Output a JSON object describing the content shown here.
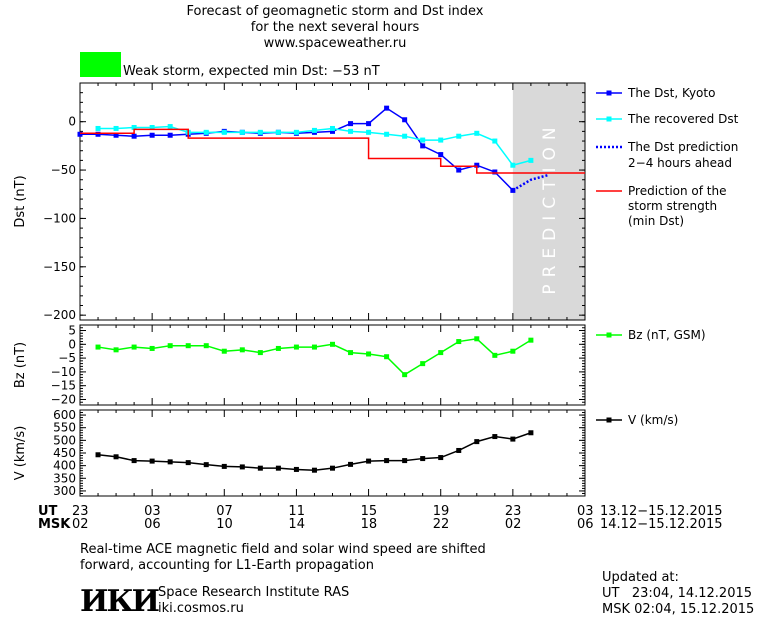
{
  "header": {
    "title_line1": "Forecast of geomagnetic storm and Dst index",
    "title_line2": "for the next several hours",
    "url": "www.spaceweather.ru",
    "status": "Weak storm, expected min Dst: −53 nT",
    "status_color": "#00ff00"
  },
  "prediction_label": "PREDICTION",
  "time_axis": {
    "ut_label": "UT",
    "msk_label": "MSK",
    "ut_ticks": [
      "23",
      "03",
      "07",
      "11",
      "15",
      "19",
      "23",
      "03"
    ],
    "msk_ticks": [
      "02",
      "06",
      "10",
      "14",
      "18",
      "22",
      "02",
      "06"
    ],
    "ut_range": "13.12−15.12.2015",
    "msk_range": "14.12−15.12.2015"
  },
  "chart_data": [
    {
      "type": "line",
      "ylabel": "Dst (nT)",
      "ylim": [
        -205,
        40
      ],
      "yticks": [
        "0",
        "−50",
        "−100",
        "−150",
        "−200"
      ],
      "ytick_values": [
        0,
        -50,
        -100,
        -150,
        -200
      ],
      "x_hours_range": [
        0,
        28
      ],
      "prediction_region_hours": [
        24,
        28
      ],
      "series": [
        {
          "name": "The Dst, Kyoto",
          "color": "#0000ff",
          "marker": "square",
          "x": [
            0,
            1,
            2,
            3,
            4,
            5,
            6,
            7,
            8,
            9,
            10,
            11,
            12,
            13,
            14,
            15,
            16,
            17,
            18,
            19,
            20,
            21,
            22,
            23,
            24
          ],
          "y": [
            -13,
            -13,
            -14,
            -15,
            -14,
            -14,
            -13,
            -12,
            -10,
            -11,
            -12,
            -11,
            -12,
            -11,
            -10,
            -2,
            -2,
            14,
            2,
            -25,
            -34,
            -50,
            -45,
            -52,
            -71
          ]
        },
        {
          "name": "The recovered Dst",
          "color": "#00ffff",
          "marker": "square",
          "x": [
            1,
            2,
            3,
            4,
            5,
            6,
            7,
            8,
            9,
            10,
            11,
            12,
            13,
            14,
            15,
            16,
            17,
            18,
            19,
            20,
            21,
            22,
            23,
            24,
            25
          ],
          "y": [
            -7,
            -7,
            -6,
            -6,
            -5,
            -11,
            -11,
            -11,
            -11,
            -11,
            -11,
            -11,
            -9,
            -7,
            -10,
            -11,
            -13,
            -15,
            -19,
            -19,
            -15,
            -12,
            -20,
            -45,
            -40
          ]
        },
        {
          "name": "The Dst prediction 2−4 hours ahead",
          "color": "#0000ff",
          "dashed": true,
          "x": [
            24,
            25,
            26
          ],
          "y": [
            -71,
            -60,
            -55
          ]
        },
        {
          "name": "Prediction of the storm strength (min Dst)",
          "color": "#ff0000",
          "step": true,
          "x": [
            0,
            2,
            3,
            5,
            6,
            15,
            16,
            19,
            20,
            21,
            22,
            23,
            28
          ],
          "y": [
            -12,
            -12,
            -8,
            -8,
            -17,
            -17,
            -38,
            -38,
            -46,
            -46,
            -53,
            -53,
            -53
          ]
        }
      ],
      "legend": [
        "The Dst, Kyoto",
        "The recovered Dst",
        "The Dst prediction",
        "2−4 hours ahead",
        "Prediction of the",
        "storm strength",
        "(min Dst)"
      ]
    },
    {
      "type": "line",
      "ylabel": "Bz (nT)",
      "ylim": [
        -22,
        7
      ],
      "yticks": [
        "5",
        "0",
        "−5",
        "−10",
        "−15",
        "−20"
      ],
      "ytick_values": [
        5,
        0,
        -5,
        -10,
        -15,
        -20
      ],
      "series": [
        {
          "name": "Bz (nT, GSM)",
          "color": "#00ff00",
          "marker": "square",
          "x": [
            1,
            2,
            3,
            4,
            5,
            6,
            7,
            8,
            9,
            10,
            11,
            12,
            13,
            14,
            15,
            16,
            17,
            18,
            19,
            20,
            21,
            22,
            23,
            24,
            25
          ],
          "y": [
            -1,
            -2,
            -1,
            -1.5,
            -0.5,
            -0.5,
            -0.5,
            -2.5,
            -2,
            -3,
            -1.5,
            -1,
            -1,
            0,
            -3,
            -3.5,
            -4.5,
            -11,
            -7,
            -3,
            1,
            2,
            -4,
            -2.5,
            1.5
          ]
        }
      ]
    },
    {
      "type": "line",
      "ylabel": "V (km/s)",
      "ylim": [
        280,
        620
      ],
      "yticks": [
        "600",
        "550",
        "500",
        "450",
        "400",
        "350",
        "300"
      ],
      "ytick_values": [
        600,
        550,
        500,
        450,
        400,
        350,
        300
      ],
      "series": [
        {
          "name": "V (km/s)",
          "color": "#000000",
          "marker": "square",
          "x": [
            1,
            2,
            3,
            4,
            5,
            6,
            7,
            8,
            9,
            10,
            11,
            12,
            13,
            14,
            15,
            16,
            17,
            18,
            19,
            20,
            21,
            22,
            23,
            24,
            25
          ],
          "y": [
            443,
            435,
            420,
            418,
            415,
            412,
            404,
            397,
            395,
            390,
            390,
            385,
            382,
            390,
            405,
            418,
            420,
            420,
            428,
            432,
            460,
            495,
            515,
            505,
            530
          ]
        }
      ]
    }
  ],
  "footer": {
    "note_line1": "Real-time ACE magnetic field and solar wind speed are shifted",
    "note_line2": "forward, accounting for L1-Earth propagation",
    "institute": "Space Research Institute RAS",
    "site": "iki.cosmos.ru",
    "logo_text": "ИКИ",
    "updated_label": "Updated at:",
    "updated_ut": "UT   23:04, 14.12.2015",
    "updated_msk": "MSK 02:04, 15.12.2015"
  }
}
